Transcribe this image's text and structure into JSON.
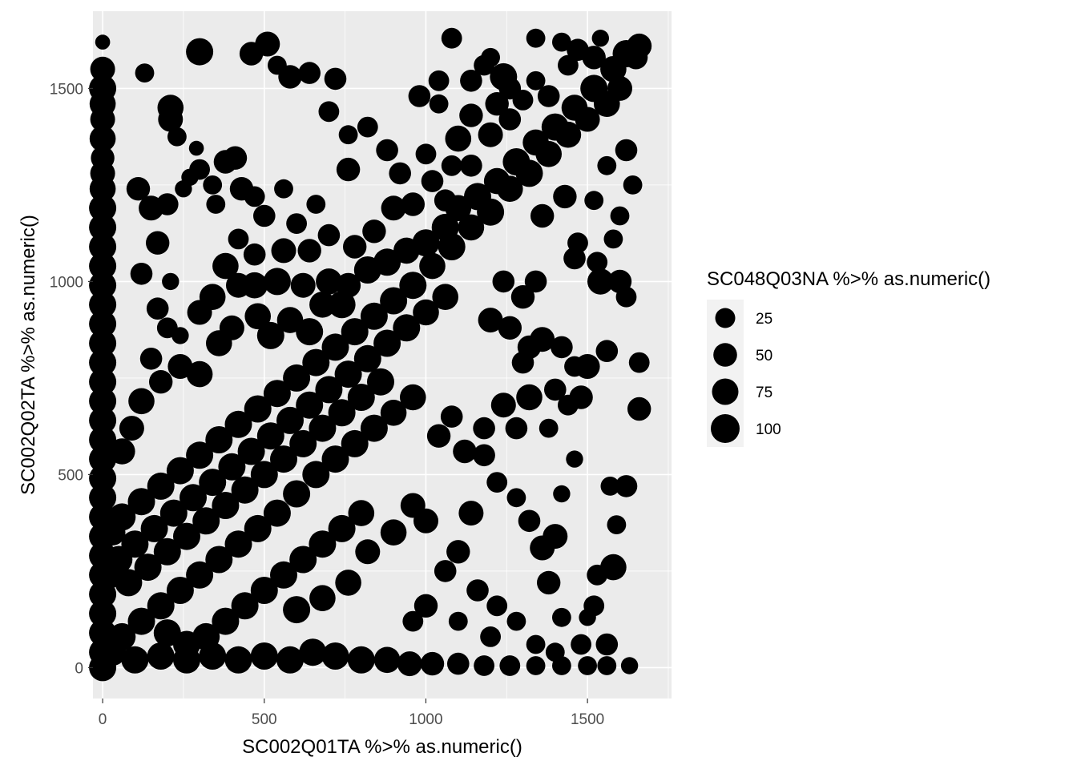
{
  "chart_data": {
    "type": "scatter",
    "title": "",
    "xlabel": "SC002Q01TA %>% as.numeric()",
    "ylabel": "SC002Q02TA %>% as.numeric()",
    "xlim": [
      -30,
      1760
    ],
    "ylim": [
      -80,
      1700
    ],
    "x_ticks": [
      0,
      500,
      1000,
      1500
    ],
    "y_ticks": [
      0,
      500,
      1000,
      1500
    ],
    "x_tick_labels": [
      "0",
      "500",
      "1000",
      "1500"
    ],
    "y_tick_labels": [
      "0",
      "500",
      "1000",
      "1500"
    ],
    "grid": true,
    "size_legend": {
      "title": "SC048Q03NA %>% as.numeric()",
      "position": "right",
      "breaks": [
        25,
        50,
        75,
        100
      ],
      "labels": [
        "25",
        "50",
        "75",
        "100"
      ]
    },
    "point_color": "#000000",
    "panel_background": "#ebebeb",
    "grid_color": "#ffffff",
    "points": [
      [
        300,
        1595,
        100
      ],
      [
        460,
        1590,
        70
      ],
      [
        510,
        1615,
        80
      ],
      [
        540,
        1560,
        40
      ],
      [
        580,
        1530,
        70
      ],
      [
        640,
        1540,
        60
      ],
      [
        720,
        1525,
        60
      ],
      [
        1080,
        1630,
        50
      ],
      [
        1200,
        1580,
        40
      ],
      [
        1240,
        1530,
        100
      ],
      [
        1340,
        1630,
        40
      ],
      [
        1420,
        1620,
        40
      ],
      [
        1470,
        1600,
        60
      ],
      [
        1540,
        1630,
        30
      ],
      [
        130,
        1540,
        40
      ],
      [
        210,
        1450,
        90
      ],
      [
        210,
        1420,
        80
      ],
      [
        230,
        1375,
        40
      ],
      [
        290,
        1345,
        20
      ],
      [
        380,
        1310,
        70
      ],
      [
        410,
        1320,
        70
      ],
      [
        300,
        1290,
        50
      ],
      [
        270,
        1270,
        30
      ],
      [
        340,
        1250,
        40
      ],
      [
        350,
        1200,
        40
      ],
      [
        250,
        1240,
        30
      ],
      [
        200,
        1200,
        60
      ],
      [
        150,
        1190,
        80
      ],
      [
        110,
        1240,
        70
      ],
      [
        170,
        1100,
        70
      ],
      [
        120,
        1020,
        60
      ],
      [
        210,
        1000,
        30
      ],
      [
        170,
        930,
        60
      ],
      [
        200,
        880,
        50
      ],
      [
        240,
        860,
        30
      ],
      [
        300,
        920,
        80
      ],
      [
        340,
        960,
        90
      ],
      [
        430,
        1240,
        70
      ],
      [
        470,
        1220,
        50
      ],
      [
        500,
        1170,
        60
      ],
      [
        560,
        1240,
        40
      ],
      [
        600,
        1150,
        50
      ],
      [
        660,
        1200,
        40
      ],
      [
        700,
        1120,
        60
      ],
      [
        640,
        1080,
        70
      ],
      [
        560,
        1080,
        80
      ],
      [
        470,
        1070,
        60
      ],
      [
        420,
        1110,
        50
      ],
      [
        380,
        1040,
        90
      ],
      [
        420,
        990,
        80
      ],
      [
        470,
        990,
        90
      ],
      [
        540,
        1000,
        100
      ],
      [
        620,
        990,
        80
      ],
      [
        700,
        1000,
        90
      ],
      [
        760,
        990,
        80
      ],
      [
        820,
        1030,
        100
      ],
      [
        880,
        1050,
        100
      ],
      [
        940,
        1080,
        90
      ],
      [
        1000,
        1100,
        100
      ],
      [
        1060,
        1140,
        100
      ],
      [
        1100,
        1190,
        90
      ],
      [
        1160,
        1220,
        100
      ],
      [
        1220,
        1260,
        90
      ],
      [
        1280,
        1310,
        100
      ],
      [
        1340,
        1360,
        90
      ],
      [
        1400,
        1400,
        100
      ],
      [
        1460,
        1450,
        90
      ],
      [
        1520,
        1500,
        100
      ],
      [
        1580,
        1550,
        90
      ],
      [
        1620,
        1590,
        100
      ],
      [
        1660,
        1610,
        80
      ],
      [
        1650,
        1580,
        70
      ],
      [
        1600,
        1500,
        80
      ],
      [
        1560,
        1460,
        90
      ],
      [
        1500,
        1420,
        80
      ],
      [
        1440,
        1380,
        90
      ],
      [
        1380,
        1330,
        90
      ],
      [
        1320,
        1280,
        100
      ],
      [
        1260,
        1240,
        90
      ],
      [
        1200,
        1180,
        100
      ],
      [
        1140,
        1140,
        90
      ],
      [
        1080,
        1090,
        100
      ],
      [
        1020,
        1040,
        90
      ],
      [
        960,
        990,
        100
      ],
      [
        900,
        950,
        100
      ],
      [
        840,
        910,
        100
      ],
      [
        780,
        870,
        100
      ],
      [
        720,
        830,
        100
      ],
      [
        660,
        790,
        100
      ],
      [
        600,
        750,
        100
      ],
      [
        540,
        710,
        100
      ],
      [
        480,
        670,
        100
      ],
      [
        420,
        630,
        100
      ],
      [
        360,
        590,
        100
      ],
      [
        300,
        550,
        100
      ],
      [
        240,
        510,
        100
      ],
      [
        180,
        470,
        100
      ],
      [
        120,
        430,
        100
      ],
      [
        60,
        390,
        100
      ],
      [
        30,
        350,
        90
      ],
      [
        700,
        720,
        100
      ],
      [
        760,
        760,
        100
      ],
      [
        820,
        800,
        100
      ],
      [
        880,
        840,
        100
      ],
      [
        940,
        880,
        100
      ],
      [
        1000,
        920,
        90
      ],
      [
        1060,
        960,
        90
      ],
      [
        640,
        680,
        100
      ],
      [
        580,
        640,
        100
      ],
      [
        520,
        600,
        100
      ],
      [
        460,
        560,
        100
      ],
      [
        400,
        520,
        100
      ],
      [
        340,
        480,
        100
      ],
      [
        280,
        440,
        100
      ],
      [
        220,
        400,
        100
      ],
      [
        160,
        360,
        100
      ],
      [
        100,
        320,
        100
      ],
      [
        50,
        280,
        100
      ],
      [
        20,
        240,
        100
      ],
      [
        500,
        500,
        100
      ],
      [
        560,
        540,
        100
      ],
      [
        620,
        580,
        100
      ],
      [
        680,
        620,
        100
      ],
      [
        740,
        660,
        100
      ],
      [
        800,
        700,
        100
      ],
      [
        860,
        740,
        100
      ],
      [
        440,
        460,
        100
      ],
      [
        380,
        420,
        100
      ],
      [
        320,
        380,
        100
      ],
      [
        260,
        340,
        100
      ],
      [
        200,
        300,
        100
      ],
      [
        140,
        260,
        100
      ],
      [
        80,
        220,
        100
      ],
      [
        600,
        450,
        100
      ],
      [
        660,
        500,
        100
      ],
      [
        720,
        540,
        100
      ],
      [
        780,
        580,
        100
      ],
      [
        840,
        620,
        100
      ],
      [
        900,
        660,
        90
      ],
      [
        960,
        700,
        90
      ],
      [
        540,
        400,
        100
      ],
      [
        480,
        360,
        100
      ],
      [
        420,
        320,
        100
      ],
      [
        360,
        280,
        100
      ],
      [
        300,
        240,
        100
      ],
      [
        240,
        200,
        100
      ],
      [
        180,
        160,
        100
      ],
      [
        120,
        120,
        100
      ],
      [
        60,
        80,
        100
      ],
      [
        30,
        40,
        100
      ],
      [
        100,
        20,
        100
      ],
      [
        180,
        30,
        100
      ],
      [
        260,
        20,
        100
      ],
      [
        340,
        30,
        100
      ],
      [
        420,
        20,
        100
      ],
      [
        500,
        30,
        100
      ],
      [
        580,
        20,
        100
      ],
      [
        650,
        40,
        100
      ],
      [
        720,
        30,
        100
      ],
      [
        800,
        20,
        100
      ],
      [
        880,
        20,
        90
      ],
      [
        950,
        10,
        80
      ],
      [
        1020,
        10,
        70
      ],
      [
        1100,
        10,
        60
      ],
      [
        1180,
        5,
        50
      ],
      [
        1260,
        5,
        50
      ],
      [
        1340,
        5,
        40
      ],
      [
        1420,
        5,
        40
      ],
      [
        1500,
        5,
        40
      ],
      [
        1560,
        5,
        40
      ],
      [
        1630,
        5,
        30
      ],
      [
        500,
        200,
        100
      ],
      [
        560,
        240,
        100
      ],
      [
        620,
        280,
        100
      ],
      [
        680,
        320,
        100
      ],
      [
        740,
        360,
        100
      ],
      [
        800,
        400,
        90
      ],
      [
        440,
        160,
        100
      ],
      [
        380,
        120,
        100
      ],
      [
        320,
        80,
        100
      ],
      [
        260,
        60,
        100
      ],
      [
        200,
        90,
        100
      ],
      [
        600,
        150,
        100
      ],
      [
        680,
        180,
        90
      ],
      [
        760,
        220,
        90
      ],
      [
        820,
        300,
        80
      ],
      [
        900,
        350,
        90
      ],
      [
        960,
        420,
        80
      ],
      [
        1000,
        380,
        80
      ],
      [
        1040,
        600,
        70
      ],
      [
        1080,
        650,
        60
      ],
      [
        1120,
        560,
        70
      ],
      [
        1180,
        620,
        60
      ],
      [
        1240,
        680,
        80
      ],
      [
        1280,
        620,
        60
      ],
      [
        1320,
        700,
        90
      ],
      [
        1380,
        620,
        40
      ],
      [
        1440,
        680,
        50
      ],
      [
        1480,
        700,
        70
      ],
      [
        1500,
        780,
        80
      ],
      [
        1560,
        820,
        60
      ],
      [
        1620,
        960,
        50
      ],
      [
        1600,
        1000,
        70
      ],
      [
        1540,
        1000,
        90
      ],
      [
        1660,
        790,
        50
      ],
      [
        1660,
        670,
        70
      ],
      [
        1620,
        470,
        60
      ],
      [
        1570,
        470,
        40
      ],
      [
        1590,
        370,
        40
      ],
      [
        1530,
        240,
        50
      ],
      [
        1580,
        260,
        90
      ],
      [
        1520,
        160,
        50
      ],
      [
        1500,
        130,
        30
      ],
      [
        1560,
        60,
        60
      ],
      [
        1480,
        60,
        50
      ],
      [
        1420,
        130,
        40
      ],
      [
        1380,
        220,
        70
      ],
      [
        1360,
        310,
        80
      ],
      [
        1320,
        380,
        60
      ],
      [
        1280,
        440,
        40
      ],
      [
        1220,
        480,
        50
      ],
      [
        1180,
        550,
        60
      ],
      [
        1140,
        400,
        80
      ],
      [
        1100,
        300,
        70
      ],
      [
        1060,
        250,
        60
      ],
      [
        1000,
        160,
        70
      ],
      [
        960,
        120,
        50
      ],
      [
        1100,
        120,
        40
      ],
      [
        1160,
        200,
        60
      ],
      [
        1220,
        160,
        50
      ],
      [
        1280,
        120,
        40
      ],
      [
        1340,
        60,
        40
      ],
      [
        1400,
        40,
        40
      ],
      [
        1200,
        80,
        50
      ],
      [
        1400,
        340,
        80
      ],
      [
        1420,
        450,
        30
      ],
      [
        1460,
        540,
        30
      ],
      [
        1360,
        850,
        80
      ],
      [
        1420,
        830,
        60
      ],
      [
        1460,
        780,
        50
      ],
      [
        1400,
        720,
        60
      ],
      [
        1340,
        1000,
        60
      ],
      [
        1300,
        960,
        70
      ],
      [
        1240,
        1000,
        60
      ],
      [
        1200,
        900,
        80
      ],
      [
        1260,
        880,
        70
      ],
      [
        1320,
        830,
        70
      ],
      [
        1300,
        790,
        60
      ],
      [
        1360,
        1170,
        70
      ],
      [
        1430,
        1220,
        70
      ],
      [
        1520,
        1210,
        40
      ],
      [
        1560,
        1300,
        40
      ],
      [
        1620,
        1340,
        60
      ],
      [
        1640,
        1250,
        40
      ],
      [
        1600,
        1170,
        40
      ],
      [
        1580,
        1110,
        40
      ],
      [
        1530,
        1050,
        50
      ],
      [
        1470,
        1100,
        50
      ],
      [
        1460,
        1060,
        60
      ],
      [
        0,
        1620,
        20
      ],
      [
        0,
        1550,
        80
      ],
      [
        0,
        1500,
        100
      ],
      [
        0,
        1460,
        90
      ],
      [
        0,
        1420,
        80
      ],
      [
        0,
        1370,
        90
      ],
      [
        0,
        1320,
        70
      ],
      [
        0,
        1280,
        80
      ],
      [
        0,
        1240,
        90
      ],
      [
        0,
        1190,
        100
      ],
      [
        0,
        1140,
        100
      ],
      [
        0,
        1090,
        100
      ],
      [
        0,
        1040,
        100
      ],
      [
        0,
        990,
        100
      ],
      [
        0,
        940,
        100
      ],
      [
        0,
        890,
        100
      ],
      [
        0,
        840,
        100
      ],
      [
        0,
        790,
        100
      ],
      [
        0,
        740,
        100
      ],
      [
        0,
        690,
        100
      ],
      [
        0,
        640,
        100
      ],
      [
        0,
        590,
        100
      ],
      [
        0,
        540,
        100
      ],
      [
        0,
        490,
        100
      ],
      [
        0,
        440,
        100
      ],
      [
        0,
        390,
        100
      ],
      [
        0,
        340,
        100
      ],
      [
        0,
        290,
        100
      ],
      [
        0,
        240,
        100
      ],
      [
        0,
        190,
        100
      ],
      [
        0,
        140,
        100
      ],
      [
        0,
        90,
        100
      ],
      [
        0,
        40,
        100
      ],
      [
        0,
        0,
        100
      ],
      [
        60,
        560,
        90
      ],
      [
        90,
        620,
        80
      ],
      [
        120,
        690,
        90
      ],
      [
        180,
        740,
        70
      ],
      [
        150,
        800,
        60
      ],
      [
        240,
        780,
        80
      ],
      [
        300,
        760,
        90
      ],
      [
        360,
        840,
        90
      ],
      [
        400,
        880,
        80
      ],
      [
        480,
        910,
        90
      ],
      [
        520,
        860,
        100
      ],
      [
        580,
        900,
        90
      ],
      [
        640,
        870,
        100
      ],
      [
        680,
        940,
        90
      ],
      [
        740,
        940,
        100
      ],
      [
        780,
        1090,
        70
      ],
      [
        840,
        1130,
        70
      ],
      [
        900,
        1190,
        80
      ],
      [
        960,
        1200,
        70
      ],
      [
        1020,
        1260,
        60
      ],
      [
        1080,
        1300,
        50
      ],
      [
        880,
        1340,
        60
      ],
      [
        820,
        1400,
        50
      ],
      [
        760,
        1380,
        40
      ],
      [
        700,
        1440,
        50
      ],
      [
        760,
        1290,
        70
      ],
      [
        920,
        1280,
        60
      ],
      [
        1000,
        1330,
        50
      ],
      [
        1060,
        1210,
        60
      ],
      [
        1140,
        1300,
        60
      ],
      [
        1200,
        1380,
        80
      ],
      [
        1260,
        1420,
        60
      ],
      [
        1300,
        1470,
        50
      ],
      [
        1220,
        1460,
        70
      ],
      [
        1140,
        1430,
        70
      ],
      [
        1100,
        1370,
        90
      ],
      [
        1040,
        1460,
        40
      ],
      [
        980,
        1480,
        60
      ],
      [
        1040,
        1520,
        50
      ],
      [
        1140,
        1520,
        60
      ],
      [
        1180,
        1560,
        50
      ],
      [
        1260,
        1500,
        60
      ],
      [
        1340,
        1520,
        40
      ],
      [
        1380,
        1480,
        60
      ],
      [
        1440,
        1560,
        50
      ],
      [
        1520,
        1580,
        70
      ]
    ]
  }
}
